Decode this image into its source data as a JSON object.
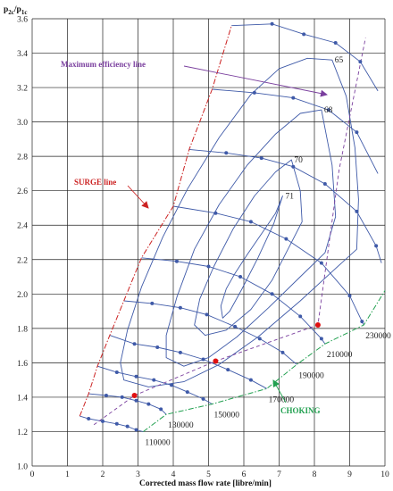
{
  "chart_data": {
    "type": "line",
    "title": "",
    "xlabel": "Corrected mass flow rate [libre/min]",
    "ylabel": "p2c/p1c",
    "ylabel_parts": {
      "main": "p",
      "sub1": "2c",
      "slash": "/p",
      "sub2": "1c"
    },
    "xlim": [
      0,
      10
    ],
    "ylim": [
      1.0,
      3.6
    ],
    "x_ticks": [
      0,
      1,
      2,
      3,
      4,
      5,
      6,
      7,
      8,
      9,
      10
    ],
    "y_ticks": [
      1.0,
      1.2,
      1.4,
      1.6,
      1.8,
      2.0,
      2.2,
      2.4,
      2.6,
      2.8,
      3.0,
      3.2,
      3.4,
      3.6
    ],
    "grid": true,
    "colors": {
      "speed_lines": "#3f5aa8",
      "efficiency_contours": "#3f5aa8",
      "surge": "#cc2222",
      "choking": "#22a050",
      "max_eff": "#7a3f9e",
      "op_points": "#e01010",
      "grid": "#222222"
    },
    "speed_lines": [
      {
        "label": "110000",
        "points": [
          [
            1.35,
            1.29
          ],
          [
            1.6,
            1.275
          ],
          [
            2.0,
            1.26
          ],
          [
            2.4,
            1.245
          ],
          [
            2.7,
            1.23
          ],
          [
            2.95,
            1.21
          ],
          [
            3.15,
            1.2
          ]
        ]
      },
      {
        "label": "130000",
        "points": [
          [
            1.6,
            1.42
          ],
          [
            2.1,
            1.41
          ],
          [
            2.55,
            1.4
          ],
          [
            2.95,
            1.38
          ],
          [
            3.3,
            1.36
          ],
          [
            3.65,
            1.33
          ],
          [
            3.8,
            1.3
          ]
        ]
      },
      {
        "label": "150000",
        "points": [
          [
            1.85,
            1.58
          ],
          [
            2.4,
            1.545
          ],
          [
            2.95,
            1.52
          ],
          [
            3.45,
            1.5
          ],
          [
            3.95,
            1.47
          ],
          [
            4.4,
            1.43
          ],
          [
            4.85,
            1.39
          ],
          [
            5.1,
            1.36
          ]
        ]
      },
      {
        "label": "170000",
        "points": [
          [
            2.2,
            1.76
          ],
          [
            2.9,
            1.71
          ],
          [
            3.55,
            1.69
          ],
          [
            4.2,
            1.66
          ],
          [
            4.85,
            1.62
          ],
          [
            5.55,
            1.56
          ],
          [
            6.2,
            1.5
          ],
          [
            6.65,
            1.45
          ]
        ]
      },
      {
        "label": "190000",
        "points": [
          [
            2.6,
            1.96
          ],
          [
            3.4,
            1.945
          ],
          [
            4.2,
            1.92
          ],
          [
            4.95,
            1.88
          ],
          [
            5.75,
            1.81
          ],
          [
            6.45,
            1.74
          ],
          [
            7.1,
            1.66
          ],
          [
            7.5,
            1.59
          ]
        ]
      },
      {
        "label": "210000",
        "points": [
          [
            3.1,
            2.21
          ],
          [
            4.1,
            2.19
          ],
          [
            5.0,
            2.16
          ],
          [
            5.9,
            2.1
          ],
          [
            6.8,
            2.0
          ],
          [
            7.6,
            1.87
          ],
          [
            8.2,
            1.74
          ],
          [
            8.3,
            1.71
          ]
        ]
      },
      {
        "label": "230000",
        "points": [
          [
            4.0,
            2.51
          ],
          [
            5.2,
            2.47
          ],
          [
            6.2,
            2.42
          ],
          [
            7.2,
            2.32
          ],
          [
            8.2,
            2.18
          ],
          [
            9.0,
            1.99
          ],
          [
            9.35,
            1.84
          ],
          [
            9.4,
            1.82
          ]
        ]
      },
      {
        "label": "",
        "points": [
          [
            4.45,
            2.84
          ],
          [
            5.5,
            2.82
          ],
          [
            6.5,
            2.79
          ],
          [
            7.4,
            2.74
          ],
          [
            8.3,
            2.64
          ],
          [
            9.2,
            2.48
          ],
          [
            9.75,
            2.28
          ],
          [
            9.9,
            2.18
          ]
        ]
      },
      {
        "label": "",
        "points": [
          [
            5.1,
            3.19
          ],
          [
            6.3,
            3.17
          ],
          [
            7.4,
            3.14
          ],
          [
            8.4,
            3.07
          ],
          [
            9.2,
            2.94
          ],
          [
            9.8,
            2.7
          ]
        ]
      },
      {
        "label": "",
        "points": [
          [
            5.65,
            3.56
          ],
          [
            6.8,
            3.57
          ],
          [
            7.7,
            3.51
          ],
          [
            8.6,
            3.46
          ],
          [
            9.3,
            3.35
          ],
          [
            9.8,
            3.18
          ]
        ]
      }
    ],
    "efficiency_contours": [
      {
        "label": "71",
        "points": [
          [
            7.1,
            2.57
          ],
          [
            6.9,
            2.47
          ],
          [
            6.5,
            2.35
          ],
          [
            6.1,
            2.23
          ],
          [
            5.75,
            2.12
          ],
          [
            5.5,
            2.03
          ],
          [
            5.35,
            1.93
          ],
          [
            5.4,
            1.86
          ],
          [
            5.6,
            1.9
          ],
          [
            5.95,
            2.03
          ],
          [
            6.4,
            2.21
          ],
          [
            6.85,
            2.41
          ],
          [
            7.1,
            2.57
          ]
        ]
      },
      {
        "label": "70",
        "points": [
          [
            7.35,
            2.78
          ],
          [
            6.9,
            2.71
          ],
          [
            6.3,
            2.57
          ],
          [
            5.7,
            2.38
          ],
          [
            5.15,
            2.16
          ],
          [
            4.75,
            1.97
          ],
          [
            4.6,
            1.82
          ],
          [
            4.9,
            1.76
          ],
          [
            5.5,
            1.79
          ],
          [
            6.2,
            1.91
          ],
          [
            6.8,
            2.08
          ],
          [
            7.3,
            2.28
          ],
          [
            7.65,
            2.42
          ],
          [
            7.6,
            2.6
          ],
          [
            7.35,
            2.78
          ]
        ]
      },
      {
        "label": "68",
        "points": [
          [
            8.2,
            3.07
          ],
          [
            7.6,
            3.05
          ],
          [
            6.9,
            2.93
          ],
          [
            6.1,
            2.75
          ],
          [
            5.3,
            2.52
          ],
          [
            4.6,
            2.26
          ],
          [
            4.1,
            1.98
          ],
          [
            3.8,
            1.76
          ],
          [
            3.8,
            1.63
          ],
          [
            4.3,
            1.58
          ],
          [
            5.0,
            1.63
          ],
          [
            5.8,
            1.75
          ],
          [
            6.7,
            1.92
          ],
          [
            7.6,
            2.1
          ],
          [
            8.3,
            2.24
          ],
          [
            8.6,
            2.45
          ],
          [
            8.5,
            2.75
          ],
          [
            8.2,
            3.07
          ]
        ]
      },
      {
        "label": "65",
        "points": [
          [
            8.5,
            3.36
          ],
          [
            7.8,
            3.37
          ],
          [
            7.0,
            3.31
          ],
          [
            6.2,
            3.16
          ],
          [
            5.3,
            2.91
          ],
          [
            4.4,
            2.61
          ],
          [
            3.7,
            2.33
          ],
          [
            3.1,
            2.04
          ],
          [
            2.7,
            1.79
          ],
          [
            2.5,
            1.6
          ],
          [
            2.6,
            1.5
          ],
          [
            3.3,
            1.46
          ],
          [
            4.3,
            1.49
          ],
          [
            5.3,
            1.59
          ],
          [
            6.4,
            1.75
          ],
          [
            7.6,
            1.96
          ],
          [
            8.5,
            2.13
          ],
          [
            9.2,
            2.26
          ],
          [
            9.25,
            2.55
          ],
          [
            9.15,
            2.85
          ],
          [
            8.9,
            3.15
          ],
          [
            8.5,
            3.36
          ]
        ]
      }
    ],
    "surge_line": {
      "label": "SURGE line",
      "points": [
        [
          1.35,
          1.29
        ],
        [
          1.6,
          1.42
        ],
        [
          1.85,
          1.58
        ],
        [
          2.2,
          1.76
        ],
        [
          2.6,
          1.96
        ],
        [
          3.1,
          2.21
        ],
        [
          4.0,
          2.51
        ],
        [
          4.45,
          2.84
        ],
        [
          5.1,
          3.19
        ],
        [
          5.65,
          3.56
        ]
      ]
    },
    "choking_line": {
      "label": "CHOKING",
      "points": [
        [
          3.15,
          1.2
        ],
        [
          3.8,
          1.3
        ],
        [
          5.1,
          1.36
        ],
        [
          6.65,
          1.45
        ],
        [
          7.5,
          1.59
        ],
        [
          8.3,
          1.71
        ],
        [
          9.4,
          1.82
        ],
        [
          10.0,
          2.02
        ]
      ]
    },
    "max_efficiency_line": {
      "label": "Maximum efficiency line",
      "points": [
        [
          1.75,
          1.24
        ],
        [
          2.9,
          1.41
        ],
        [
          5.2,
          1.61
        ],
        [
          8.1,
          1.82
        ],
        [
          8.7,
          2.72
        ],
        [
          9.45,
          3.49
        ]
      ]
    },
    "operating_points": [
      [
        2.9,
        1.41
      ],
      [
        5.2,
        1.61
      ],
      [
        8.1,
        1.82
      ]
    ]
  }
}
